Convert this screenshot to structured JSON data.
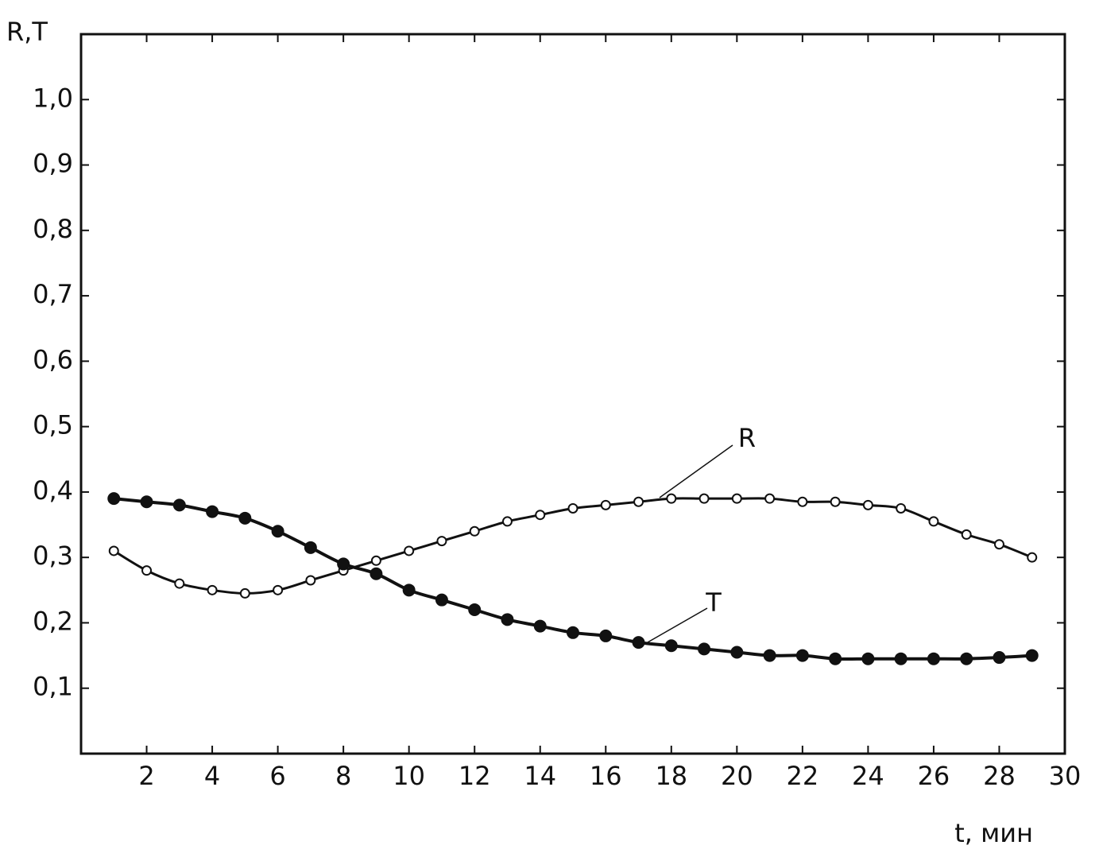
{
  "chart_data": {
    "type": "line",
    "ylabel": "R,T",
    "xlabel": "t, мин",
    "xlim": [
      0,
      30
    ],
    "ylim": [
      0,
      1.1
    ],
    "xticks": [
      2,
      4,
      6,
      8,
      10,
      12,
      14,
      16,
      18,
      20,
      22,
      24,
      26,
      28,
      30
    ],
    "yticks": [
      {
        "value": 0.1,
        "label": "0,1"
      },
      {
        "value": 0.2,
        "label": "0,2"
      },
      {
        "value": 0.3,
        "label": "0,3"
      },
      {
        "value": 0.4,
        "label": "0,4"
      },
      {
        "value": 0.5,
        "label": "0,5"
      },
      {
        "value": 0.6,
        "label": "0,6"
      },
      {
        "value": 0.7,
        "label": "0,7"
      },
      {
        "value": 0.8,
        "label": "0,8"
      },
      {
        "value": 0.9,
        "label": "0,9"
      },
      {
        "value": 1.0,
        "label": "1,0"
      }
    ],
    "series": [
      {
        "name": "R",
        "color": "#111111",
        "marker": "open",
        "x": [
          1,
          2,
          3,
          4,
          5,
          6,
          7,
          8,
          9,
          10,
          11,
          12,
          13,
          14,
          15,
          16,
          17,
          18,
          19,
          20,
          21,
          22,
          23,
          24,
          25,
          26,
          27,
          28,
          29
        ],
        "values": [
          0.31,
          0.28,
          0.26,
          0.25,
          0.245,
          0.25,
          0.265,
          0.28,
          0.295,
          0.31,
          0.325,
          0.34,
          0.355,
          0.365,
          0.375,
          0.38,
          0.385,
          0.39,
          0.39,
          0.39,
          0.39,
          0.385,
          0.385,
          0.38,
          0.375,
          0.355,
          0.335,
          0.32,
          0.3
        ]
      },
      {
        "name": "T",
        "color": "#111111",
        "marker": "filled",
        "x": [
          1,
          2,
          3,
          4,
          5,
          6,
          7,
          8,
          9,
          10,
          11,
          12,
          13,
          14,
          15,
          16,
          17,
          18,
          19,
          20,
          21,
          22,
          23,
          24,
          25,
          26,
          27,
          28,
          29
        ],
        "values": [
          0.39,
          0.385,
          0.38,
          0.37,
          0.36,
          0.34,
          0.315,
          0.29,
          0.275,
          0.25,
          0.235,
          0.22,
          0.205,
          0.195,
          0.185,
          0.18,
          0.17,
          0.165,
          0.16,
          0.155,
          0.15,
          0.15,
          0.145,
          0.145,
          0.145,
          0.145,
          0.145,
          0.147,
          0.15
        ]
      }
    ]
  }
}
